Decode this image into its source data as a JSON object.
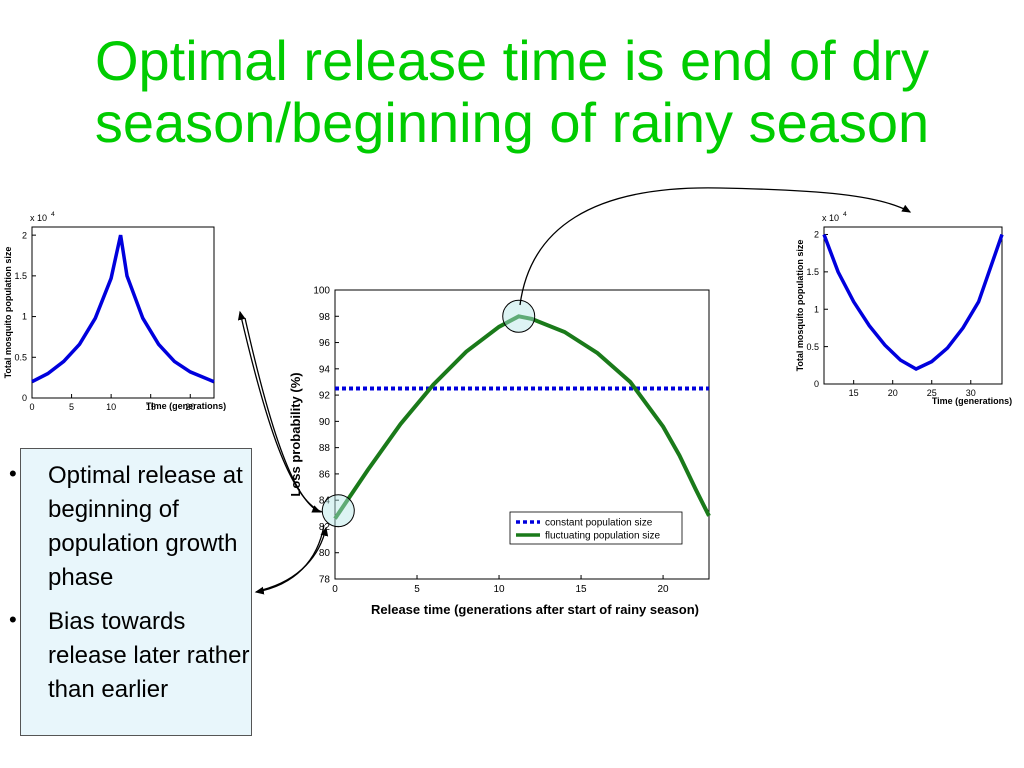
{
  "title": {
    "line1": "Optimal release time is end of dry",
    "line2": "season/beginning of rainy season"
  },
  "colors": {
    "title": "#00cc00",
    "blue_series": "#0000dd",
    "green_series": "#1a7a1a",
    "bullet_box_bg": "#e8f6fb"
  },
  "bullets": [
    {
      "text": "Optimal release at beginning of population growth phase"
    },
    {
      "text": "Bias towards release later rather than earlier"
    }
  ],
  "chart_data": [
    {
      "type": "line",
      "id": "main",
      "title": "",
      "xlabel": "Release time (generations after start of rainy season)",
      "ylabel": "Loss probability (%)",
      "xlim": [
        0,
        22.8
      ],
      "ylim": [
        78,
        100
      ],
      "xticks": [
        0,
        5,
        10,
        15,
        20
      ],
      "yticks": [
        78,
        80,
        82,
        84,
        86,
        88,
        90,
        92,
        94,
        96,
        98,
        100
      ],
      "grid": false,
      "legend": "lower-right",
      "series": [
        {
          "name": "constant population size",
          "style": "dotted",
          "color": "#0000dd",
          "x": [
            0,
            22.8
          ],
          "y": [
            92.5,
            92.5
          ]
        },
        {
          "name": "fluctuating population size",
          "style": "solid",
          "color": "#1a7a1a",
          "x": [
            0,
            2,
            4,
            6,
            8,
            10,
            11.2,
            12,
            14,
            16,
            18,
            20,
            21,
            22,
            22.8
          ],
          "y": [
            82.6,
            86.3,
            89.8,
            92.8,
            95.3,
            97.2,
            98.0,
            97.8,
            96.8,
            95.2,
            93.0,
            89.6,
            87.4,
            84.8,
            82.8
          ]
        }
      ],
      "highlights": [
        {
          "x": 0.2,
          "y": 83.2
        },
        {
          "x": 11.2,
          "y": 98.0
        }
      ]
    },
    {
      "type": "line",
      "id": "left",
      "xlabel": "Time (generations)",
      "ylabel": "Total mosquito population size",
      "multiplier": "x 10",
      "multiplier_exp": "4",
      "xlim": [
        0,
        23
      ],
      "ylim": [
        0,
        2.1
      ],
      "xticks": [
        0,
        5,
        10,
        15,
        20
      ],
      "ytick_values": [
        0,
        0.5,
        1,
        1.5,
        2
      ],
      "yticks": [
        "0",
        "0.5",
        "1",
        "1.5",
        "2"
      ],
      "series": [
        {
          "name": "",
          "color": "#0000dd",
          "x": [
            0,
            2,
            4,
            6,
            8,
            10,
            11.2,
            12,
            14,
            16,
            18,
            20,
            23
          ],
          "y": [
            0.2,
            0.3,
            0.45,
            0.66,
            0.98,
            1.47,
            2.0,
            1.5,
            0.98,
            0.66,
            0.45,
            0.32,
            0.2
          ]
        }
      ]
    },
    {
      "type": "line",
      "id": "right",
      "xlabel": "Time (generations)",
      "ylabel": "Total mosquito population size",
      "multiplier": "x 10",
      "multiplier_exp": "4",
      "xlim": [
        11.2,
        34
      ],
      "ylim": [
        0,
        2.1
      ],
      "xticks": [
        15,
        20,
        25,
        30
      ],
      "ytick_values": [
        0,
        0.5,
        1,
        1.5,
        2
      ],
      "yticks": [
        "0",
        "0.5",
        "1",
        "1.5",
        "2"
      ],
      "series": [
        {
          "name": "",
          "color": "#0000dd",
          "x": [
            11.2,
            13,
            15,
            17,
            19,
            21,
            23,
            25,
            27,
            29,
            31,
            34
          ],
          "y": [
            2.0,
            1.5,
            1.1,
            0.78,
            0.52,
            0.32,
            0.2,
            0.3,
            0.48,
            0.75,
            1.1,
            2.0
          ]
        }
      ]
    }
  ]
}
